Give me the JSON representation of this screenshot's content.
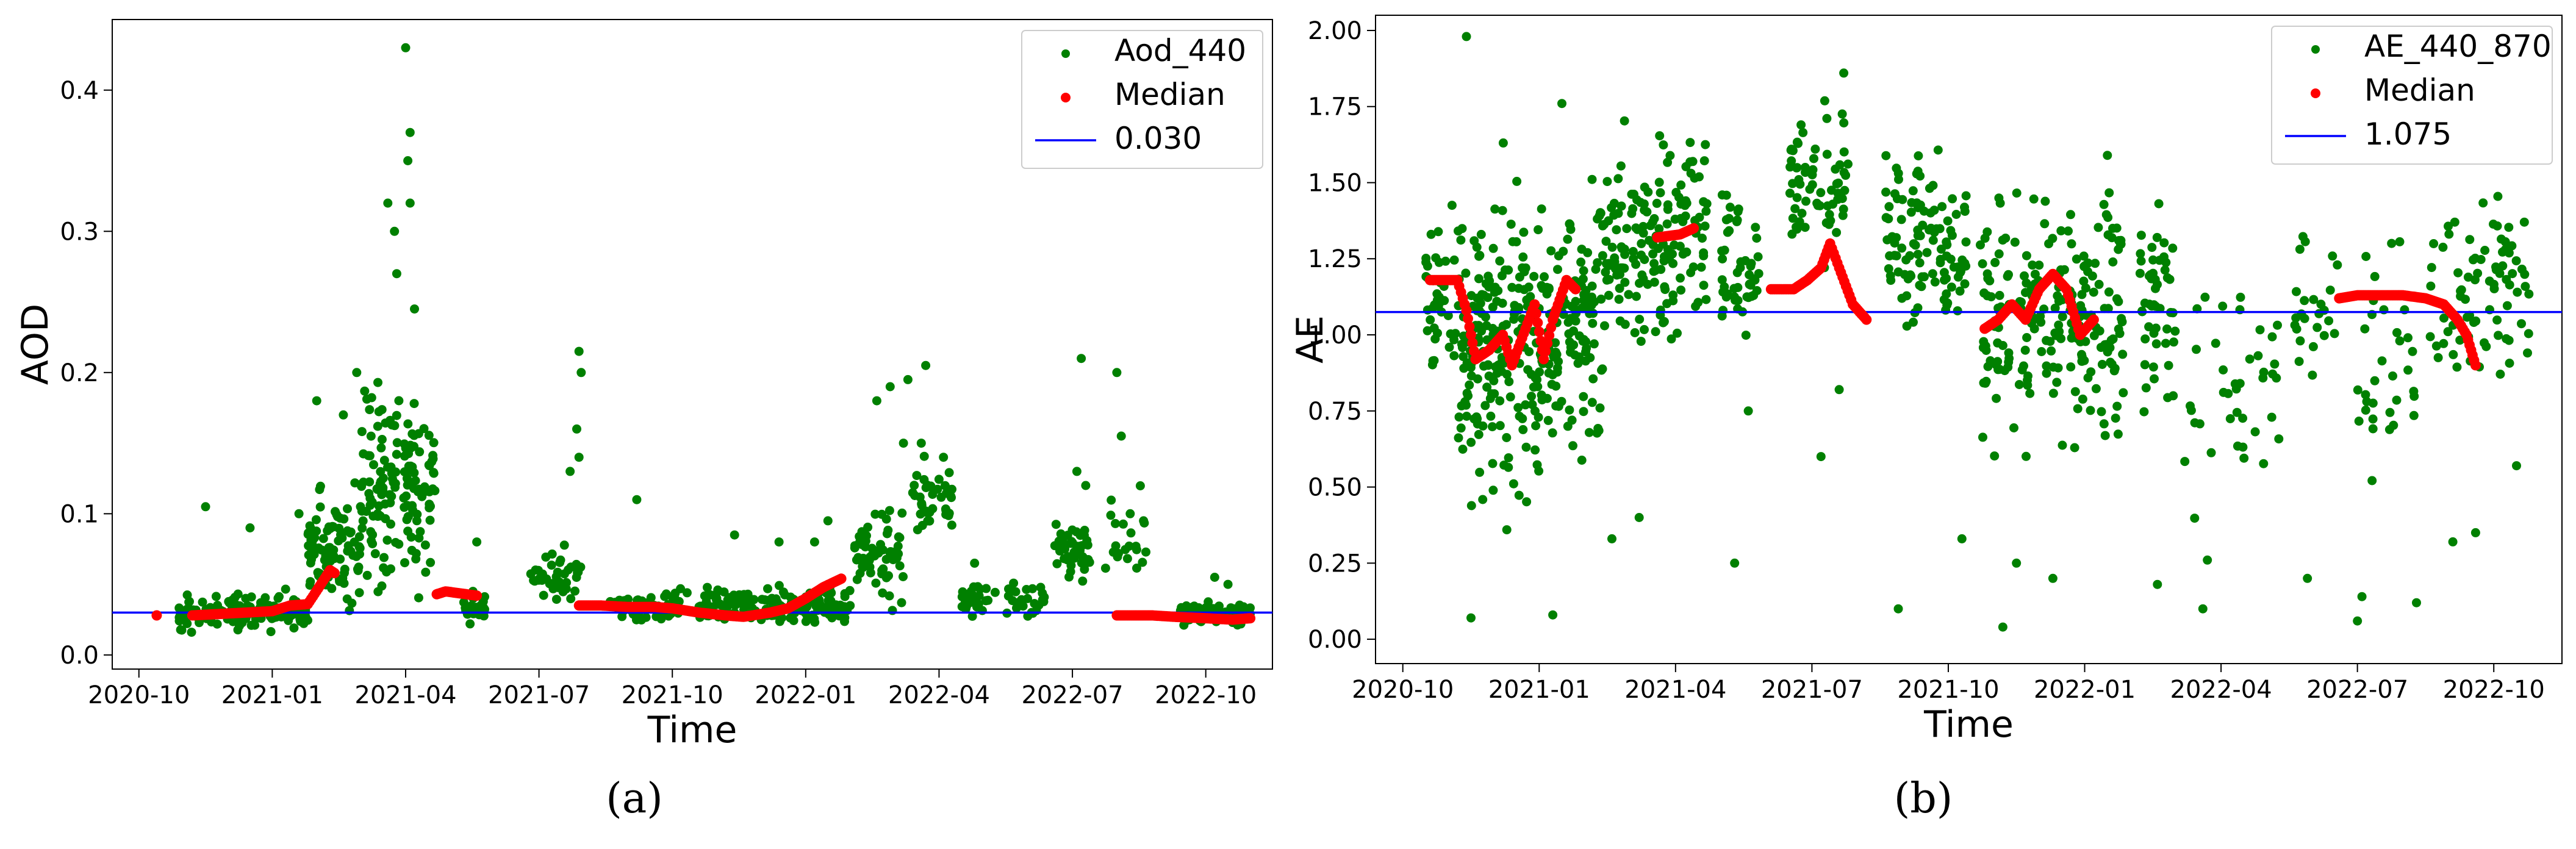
{
  "chart_data": [
    {
      "panel_label": "(a)",
      "type": "scatter",
      "xlabel": "Time",
      "ylabel": "AOD",
      "x_ticks": [
        "2020-10",
        "2021-01",
        "2021-04",
        "2021-07",
        "2021-10",
        "2022-01",
        "2022-04",
        "2022-07",
        "2022-10"
      ],
      "xlim": [
        -0.6,
        25.5
      ],
      "ylim": [
        -0.01,
        0.45
      ],
      "y_ticks": [
        0.0,
        0.1,
        0.2,
        0.3,
        0.4
      ],
      "y_tick_labels": [
        "0.0",
        "0.1",
        "0.2",
        "0.3",
        "0.4"
      ],
      "reference_line": {
        "value": 0.03,
        "label": "0.030",
        "color": "#0000ff"
      },
      "legend": {
        "position": "top-right",
        "entries": [
          "Aod_440",
          "Median",
          "0.030"
        ]
      },
      "series": [
        {
          "name": "Aod_440",
          "color": "#008000",
          "segments": [
            {
              "start": 0.9,
              "end": 3.8,
              "base": 0.03,
              "spread": 0.012,
              "count": 150,
              "outliers": [
                [
                  1.5,
                  0.105
                ],
                [
                  2.5,
                  0.09
                ],
                [
                  3.6,
                  0.1
                ]
              ]
            },
            {
              "start": 3.8,
              "end": 5.0,
              "base": 0.08,
              "spread": 0.045,
              "count": 90,
              "outliers": [
                [
                  4.0,
                  0.18
                ],
                [
                  4.6,
                  0.17
                ],
                [
                  4.9,
                  0.2
                ]
              ]
            },
            {
              "start": 5.0,
              "end": 6.7,
              "base": 0.12,
              "spread": 0.07,
              "count": 150,
              "outliers": [
                [
                  6.0,
                  0.43
                ],
                [
                  6.1,
                  0.37
                ],
                [
                  6.05,
                  0.35
                ],
                [
                  5.6,
                  0.32
                ],
                [
                  5.75,
                  0.3
                ],
                [
                  5.8,
                  0.27
                ],
                [
                  6.2,
                  0.245
                ],
                [
                  6.1,
                  0.32
                ]
              ]
            },
            {
              "start": 7.3,
              "end": 7.8,
              "base": 0.035,
              "spread": 0.012,
              "count": 25,
              "outliers": [
                [
                  7.6,
                  0.08
                ]
              ]
            },
            {
              "start": 8.8,
              "end": 10.0,
              "base": 0.055,
              "spread": 0.02,
              "count": 45,
              "outliers": [
                [
                  9.9,
                  0.215
                ],
                [
                  9.95,
                  0.2
                ],
                [
                  9.85,
                  0.16
                ],
                [
                  9.9,
                  0.14
                ],
                [
                  9.7,
                  0.13
                ]
              ]
            },
            {
              "start": 10.6,
              "end": 12.4,
              "base": 0.035,
              "spread": 0.01,
              "count": 70,
              "outliers": [
                [
                  11.2,
                  0.11
                ]
              ]
            },
            {
              "start": 12.6,
              "end": 16.0,
              "base": 0.035,
              "spread": 0.013,
              "count": 170,
              "outliers": [
                [
                  13.4,
                  0.085
                ],
                [
                  14.4,
                  0.08
                ],
                [
                  15.2,
                  0.08
                ],
                [
                  15.5,
                  0.095
                ]
              ]
            },
            {
              "start": 16.1,
              "end": 17.2,
              "base": 0.07,
              "spread": 0.03,
              "count": 70,
              "outliers": [
                [
                  16.6,
                  0.18
                ],
                [
                  16.9,
                  0.19
                ],
                [
                  17.3,
                  0.195
                ],
                [
                  17.2,
                  0.15
                ]
              ]
            },
            {
              "start": 17.4,
              "end": 18.3,
              "base": 0.11,
              "spread": 0.025,
              "count": 40,
              "outliers": [
                [
                  17.7,
                  0.205
                ],
                [
                  17.6,
                  0.15
                ],
                [
                  18.1,
                  0.14
                ]
              ]
            },
            {
              "start": 18.5,
              "end": 19.3,
              "base": 0.04,
              "spread": 0.012,
              "count": 30,
              "outliers": [
                [
                  18.8,
                  0.065
                ]
              ]
            },
            {
              "start": 19.5,
              "end": 20.4,
              "base": 0.04,
              "spread": 0.015,
              "count": 25,
              "outliers": []
            },
            {
              "start": 20.6,
              "end": 21.4,
              "base": 0.075,
              "spread": 0.025,
              "count": 45,
              "outliers": [
                [
                  21.2,
                  0.21
                ],
                [
                  21.1,
                  0.13
                ],
                [
                  21.3,
                  0.12
                ]
              ]
            },
            {
              "start": 21.7,
              "end": 22.7,
              "base": 0.08,
              "spread": 0.03,
              "count": 20,
              "outliers": [
                [
                  22.0,
                  0.2
                ],
                [
                  22.1,
                  0.155
                ],
                [
                  22.3,
                  0.1
                ],
                [
                  22.6,
                  0.095
                ]
              ]
            },
            {
              "start": 23.4,
              "end": 25.0,
              "base": 0.03,
              "spread": 0.008,
              "count": 100,
              "outliers": [
                [
                  24.2,
                  0.055
                ],
                [
                  24.5,
                  0.05
                ]
              ]
            }
          ]
        },
        {
          "name": "Median",
          "color": "#ff0000",
          "points": [
            [
              0.4,
              0.028
            ],
            [
              1.2,
              0.028
            ],
            [
              1.8,
              0.029
            ],
            [
              2.4,
              0.03
            ],
            [
              3.0,
              0.031
            ],
            [
              3.4,
              0.035
            ],
            [
              3.8,
              0.036
            ],
            [
              4.3,
              0.06
            ],
            [
              4.4,
              0.058
            ],
            [
              6.7,
              0.043
            ],
            [
              6.9,
              0.045
            ],
            [
              7.6,
              0.042
            ],
            [
              9.9,
              0.035
            ],
            [
              10.4,
              0.035
            ],
            [
              11.0,
              0.034
            ],
            [
              11.6,
              0.034
            ],
            [
              12.0,
              0.033
            ],
            [
              12.6,
              0.03
            ],
            [
              13.2,
              0.028
            ],
            [
              13.6,
              0.027
            ],
            [
              14.2,
              0.03
            ],
            [
              14.6,
              0.033
            ],
            [
              15.0,
              0.04
            ],
            [
              15.4,
              0.048
            ],
            [
              15.8,
              0.054
            ],
            [
              22.0,
              0.028
            ],
            [
              22.4,
              0.028
            ],
            [
              22.8,
              0.028
            ],
            [
              23.3,
              0.027
            ],
            [
              24.0,
              0.026
            ],
            [
              24.6,
              0.025
            ],
            [
              25.0,
              0.026
            ]
          ]
        }
      ]
    },
    {
      "panel_label": "(b)",
      "type": "scatter",
      "xlabel": "Time",
      "ylabel": "AE",
      "x_ticks": [
        "2020-10",
        "2021-01",
        "2021-04",
        "2021-07",
        "2021-10",
        "2022-01",
        "2022-04",
        "2022-07",
        "2022-10"
      ],
      "xlim": [
        -0.6,
        25.5
      ],
      "ylim": [
        -0.08,
        2.05
      ],
      "y_ticks": [
        0.0,
        0.25,
        0.5,
        0.75,
        1.0,
        1.25,
        1.5,
        1.75,
        2.0
      ],
      "y_tick_labels": [
        "0.00",
        "0.25",
        "0.50",
        "0.75",
        "1.00",
        "1.25",
        "1.50",
        "1.75",
        "2.00"
      ],
      "reference_line": {
        "value": 1.075,
        "label": "1.075",
        "color": "#0000ff"
      },
      "legend": {
        "position": "top-right",
        "entries": [
          "AE_440_870",
          "Median",
          "1.075"
        ]
      },
      "series": [
        {
          "name": "AE_440_870",
          "color": "#008000",
          "segments": [
            {
              "start": 0.5,
              "end": 1.2,
              "base": 1.15,
              "spread": 0.25,
              "count": 40,
              "outliers": [
                [
                  1.4,
                  1.98
                ]
              ]
            },
            {
              "start": 1.2,
              "end": 3.0,
              "base": 0.95,
              "spread": 0.5,
              "count": 200,
              "outliers": [
                [
                  1.5,
                  0.07
                ]
              ]
            },
            {
              "start": 3.0,
              "end": 4.4,
              "base": 1.05,
              "spread": 0.45,
              "count": 130,
              "outliers": [
                [
                  3.3,
                  0.08
                ],
                [
                  3.5,
                  1.76
                ]
              ]
            },
            {
              "start": 4.4,
              "end": 6.7,
              "base": 1.3,
              "spread": 0.3,
              "count": 160,
              "outliers": [
                [
                  4.6,
                  0.33
                ],
                [
                  5.2,
                  0.4
                ]
              ]
            },
            {
              "start": 7.0,
              "end": 7.9,
              "base": 1.2,
              "spread": 0.3,
              "count": 50,
              "outliers": [
                [
                  7.3,
                  0.25
                ],
                [
                  7.6,
                  0.75
                ]
              ]
            },
            {
              "start": 8.5,
              "end": 9.8,
              "base": 1.5,
              "spread": 0.22,
              "count": 70,
              "outliers": [
                [
                  9.7,
                  1.86
                ],
                [
                  9.2,
                  0.6
                ],
                [
                  9.6,
                  0.82
                ]
              ]
            },
            {
              "start": 10.6,
              "end": 12.4,
              "base": 1.3,
              "spread": 0.3,
              "count": 110,
              "outliers": [
                [
                  10.9,
                  0.1
                ],
                [
                  12.3,
                  0.33
                ]
              ]
            },
            {
              "start": 12.7,
              "end": 15.9,
              "base": 1.05,
              "spread": 0.45,
              "count": 220,
              "outliers": [
                [
                  13.2,
                  0.04
                ],
                [
                  13.5,
                  0.25
                ],
                [
                  14.3,
                  0.2
                ]
              ]
            },
            {
              "start": 16.2,
              "end": 17.0,
              "base": 1.1,
              "spread": 0.35,
              "count": 50,
              "outliers": [
                [
                  16.6,
                  0.18
                ]
              ]
            },
            {
              "start": 17.2,
              "end": 19.3,
              "base": 0.8,
              "spread": 0.35,
              "count": 40,
              "outliers": [
                [
                  17.6,
                  0.1
                ],
                [
                  17.7,
                  0.26
                ]
              ]
            },
            {
              "start": 19.6,
              "end": 20.6,
              "base": 1.1,
              "spread": 0.25,
              "count": 25,
              "outliers": [
                [
                  19.9,
                  0.2
                ]
              ]
            },
            {
              "start": 21.0,
              "end": 22.3,
              "base": 0.9,
              "spread": 0.4,
              "count": 35,
              "outliers": [
                [
                  21.0,
                  0.06
                ],
                [
                  21.1,
                  0.14
                ],
                [
                  22.3,
                  0.12
                ]
              ]
            },
            {
              "start": 22.6,
              "end": 24.8,
              "base": 1.15,
              "spread": 0.3,
              "count": 80,
              "outliers": [
                [
                  23.6,
                  0.35
                ],
                [
                  23.1,
                  0.32
                ],
                [
                  24.5,
                  0.57
                ]
              ]
            }
          ]
        },
        {
          "name": "Median",
          "color": "#ff0000",
          "points": [
            [
              0.6,
              1.18
            ],
            [
              0.9,
              1.18
            ],
            [
              1.2,
              1.18
            ],
            [
              1.4,
              1.08
            ],
            [
              1.6,
              0.92
            ],
            [
              1.9,
              0.95
            ],
            [
              2.2,
              1.0
            ],
            [
              2.4,
              0.9
            ],
            [
              2.7,
              1.02
            ],
            [
              2.9,
              1.1
            ],
            [
              3.1,
              0.92
            ],
            [
              3.3,
              1.05
            ],
            [
              3.6,
              1.18
            ],
            [
              3.8,
              1.15
            ],
            [
              5.6,
              1.32
            ],
            [
              6.1,
              1.33
            ],
            [
              6.4,
              1.35
            ],
            [
              8.1,
              1.15
            ],
            [
              8.6,
              1.15
            ],
            [
              8.9,
              1.18
            ],
            [
              9.2,
              1.22
            ],
            [
              9.4,
              1.3
            ],
            [
              9.6,
              1.22
            ],
            [
              9.9,
              1.1
            ],
            [
              10.2,
              1.05
            ],
            [
              12.8,
              1.02
            ],
            [
              13.1,
              1.05
            ],
            [
              13.4,
              1.1
            ],
            [
              13.7,
              1.05
            ],
            [
              14.0,
              1.15
            ],
            [
              14.3,
              1.2
            ],
            [
              14.6,
              1.15
            ],
            [
              14.9,
              1.0
            ],
            [
              15.2,
              1.05
            ],
            [
              20.6,
              1.12
            ],
            [
              21.0,
              1.13
            ],
            [
              21.5,
              1.13
            ],
            [
              22.0,
              1.13
            ],
            [
              22.5,
              1.12
            ],
            [
              22.9,
              1.1
            ],
            [
              23.2,
              1.05
            ],
            [
              23.4,
              1.0
            ],
            [
              23.6,
              0.9
            ]
          ]
        }
      ]
    }
  ]
}
